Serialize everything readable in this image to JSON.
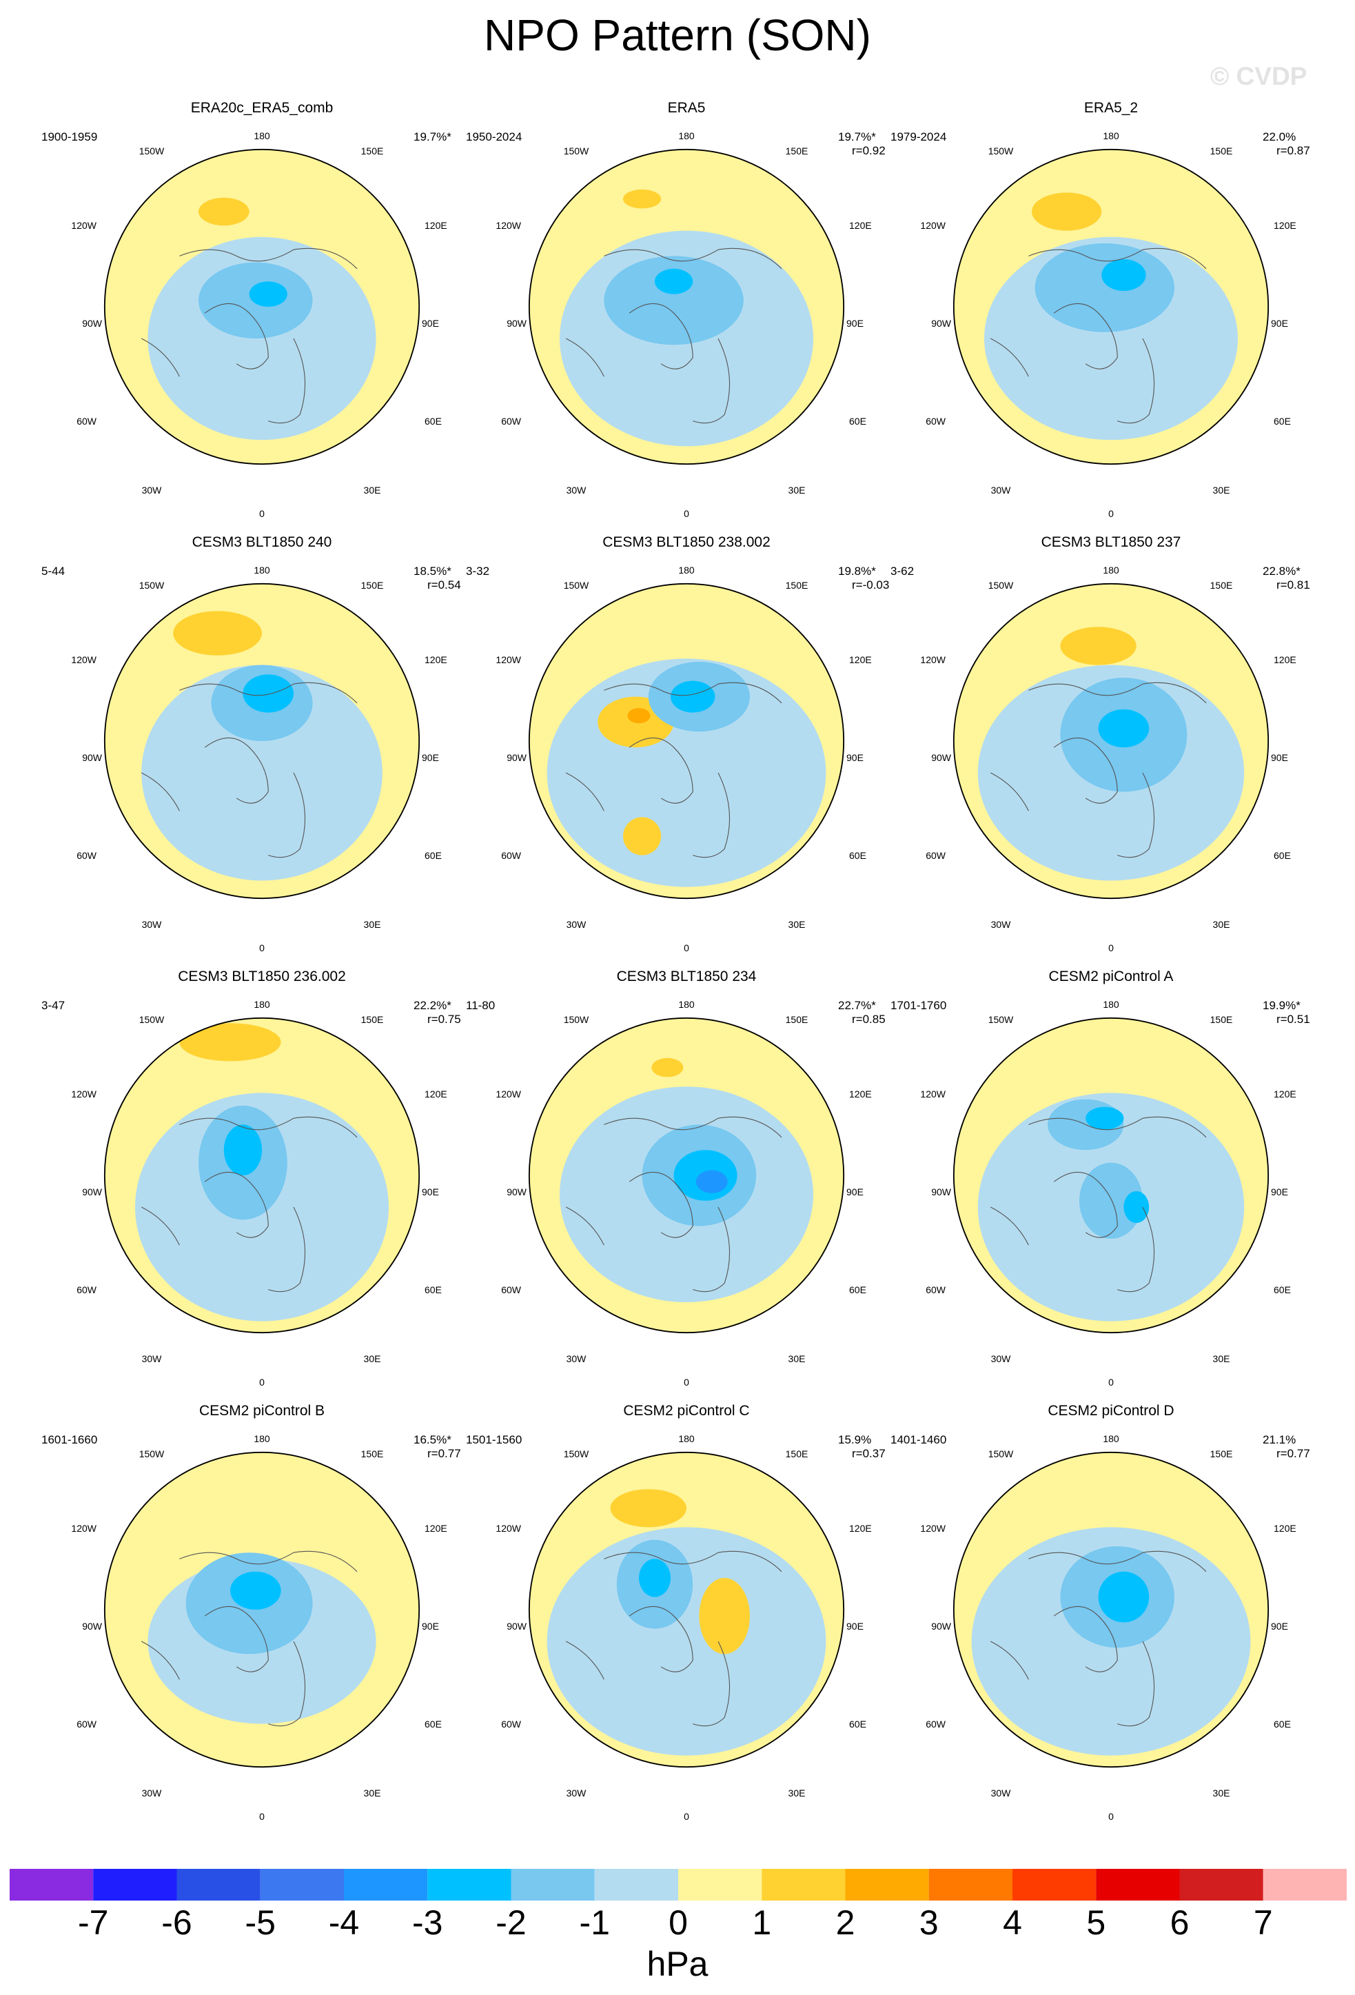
{
  "title": "NPO Pattern (SON)",
  "watermark": "© CVDP",
  "map_labels": {
    "lat180": "180",
    "lon150w": "150W",
    "lon150e": "150E",
    "lon120w": "120W",
    "lon120e": "120E",
    "lon90w": "90W",
    "lon90e": "90E",
    "lon60w": "60W",
    "lon60e": "60E",
    "lon30w": "30W",
    "lon30e": "30E",
    "lon0": "0"
  },
  "panels": [
    {
      "title": "ERA20c_ERA5_comb",
      "period": "1900-1959",
      "pct": "19.7%*",
      "corr": ""
    },
    {
      "title": "ERA5",
      "period": "1950-2024",
      "pct": "19.7%*",
      "corr": "r=0.92"
    },
    {
      "title": "ERA5_2",
      "period": "1979-2024",
      "pct": "22.0%",
      "corr": "r=0.87"
    },
    {
      "title": "CESM3 BLT1850 240",
      "period": "5-44",
      "pct": "18.5%*",
      "corr": "r=0.54"
    },
    {
      "title": "CESM3 BLT1850 238.002",
      "period": "3-32",
      "pct": "19.8%*",
      "corr": "r=-0.03"
    },
    {
      "title": "CESM3 BLT1850 237",
      "period": "3-62",
      "pct": "22.8%*",
      "corr": "r=0.81"
    },
    {
      "title": "CESM3 BLT1850 236.002",
      "period": "3-47",
      "pct": "22.2%*",
      "corr": "r=0.75"
    },
    {
      "title": "CESM3 BLT1850 234",
      "period": "11-80",
      "pct": "22.7%*",
      "corr": "r=0.85"
    },
    {
      "title": "CESM2 piControl A",
      "period": "1701-1760",
      "pct": "19.9%*",
      "corr": "r=0.51"
    },
    {
      "title": "CESM2 piControl B",
      "period": "1601-1660",
      "pct": "16.5%*",
      "corr": "r=0.77"
    },
    {
      "title": "CESM2 piControl C",
      "period": "1501-1560",
      "pct": "15.9%",
      "corr": "r=0.37"
    },
    {
      "title": "CESM2 piControl D",
      "period": "1401-1460",
      "pct": "21.1%",
      "corr": "r=0.77"
    }
  ],
  "colorbar": {
    "units": "hPa",
    "ticks": [
      "-7",
      "-6",
      "-5",
      "-4",
      "-3",
      "-2",
      "-1",
      "0",
      "1",
      "2",
      "3",
      "4",
      "5",
      "6",
      "7"
    ],
    "colors": [
      "#8a2be2",
      "#1e1eff",
      "#2850e6",
      "#3c78f0",
      "#1e96ff",
      "#00c0ff",
      "#78c8f0",
      "#b4dcf0",
      "#fff59b",
      "#ffd232",
      "#ffaa00",
      "#ff7800",
      "#ff3c00",
      "#e60000",
      "#d21e1e",
      "#ffb4b4"
    ]
  }
}
